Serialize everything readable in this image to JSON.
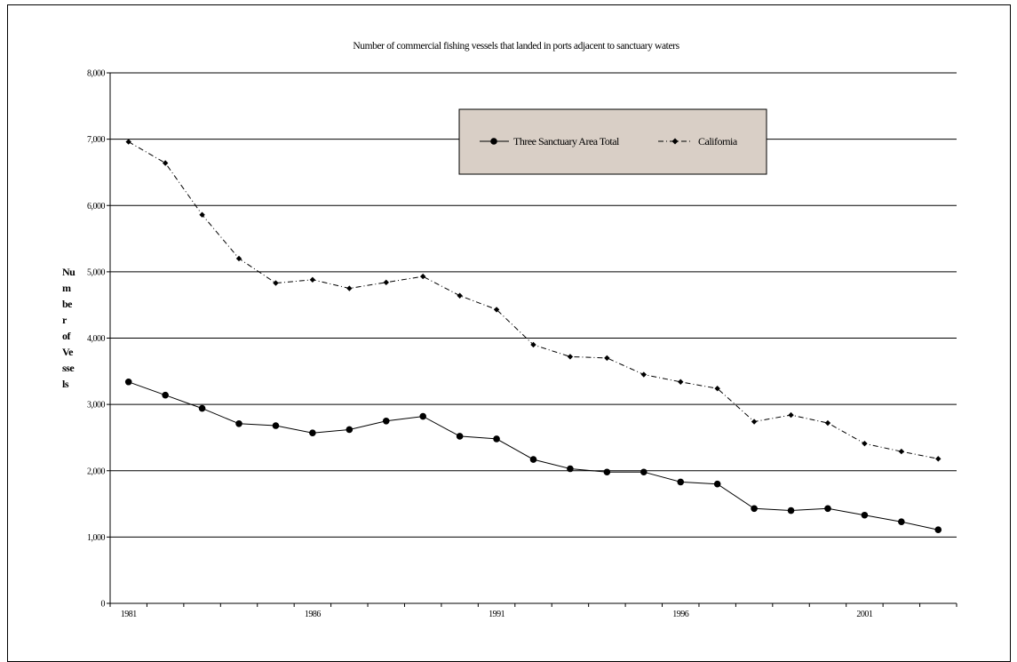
{
  "chart_data": {
    "type": "line",
    "title": "Number of commercial fishing vessels that landed in ports adjacent to sanctuary waters",
    "ylabel_lines": [
      "Nu",
      "m",
      "be",
      "r",
      "of",
      "Ve",
      "sse",
      "ls"
    ],
    "xlabel": "",
    "x": [
      1981,
      1982,
      1983,
      1984,
      1985,
      1986,
      1987,
      1988,
      1989,
      1990,
      1991,
      1992,
      1993,
      1994,
      1995,
      1996,
      1997,
      1998,
      1999,
      2000,
      2001,
      2002,
      2003
    ],
    "x_tick_labels": [
      "1981",
      "1986",
      "1991",
      "1996",
      "2001"
    ],
    "x_tick_label_values": [
      1981,
      1986,
      1991,
      1996,
      2001
    ],
    "y_ticks": [
      0,
      1000,
      2000,
      3000,
      4000,
      5000,
      6000,
      7000,
      8000
    ],
    "y_tick_labels": [
      "0",
      "1,000",
      "2,000",
      "3,000",
      "4,000",
      "5,000",
      "6,000",
      "7,000",
      "8,000"
    ],
    "ylim": [
      0,
      8000
    ],
    "grid": "horizontal",
    "legend_position": "top-center",
    "legend_background": "#d9cfc6",
    "series": [
      {
        "name": "Three Sanctuary Area Total",
        "line_style": "solid",
        "marker": "circle",
        "color": "#000000",
        "values": [
          3340,
          3140,
          2940,
          2710,
          2680,
          2570,
          2620,
          2750,
          2820,
          2520,
          2480,
          2170,
          2030,
          1980,
          1980,
          1830,
          1800,
          1430,
          1400,
          1430,
          1330,
          1230,
          1110
        ]
      },
      {
        "name": "California",
        "line_style": "dash-dot",
        "marker": "diamond",
        "color": "#000000",
        "values": [
          6960,
          6640,
          5860,
          5200,
          4830,
          4880,
          4750,
          4840,
          4930,
          4640,
          4430,
          3900,
          3720,
          3700,
          3450,
          3340,
          3240,
          2740,
          2840,
          2720,
          2410,
          2290,
          2180
        ]
      }
    ]
  }
}
